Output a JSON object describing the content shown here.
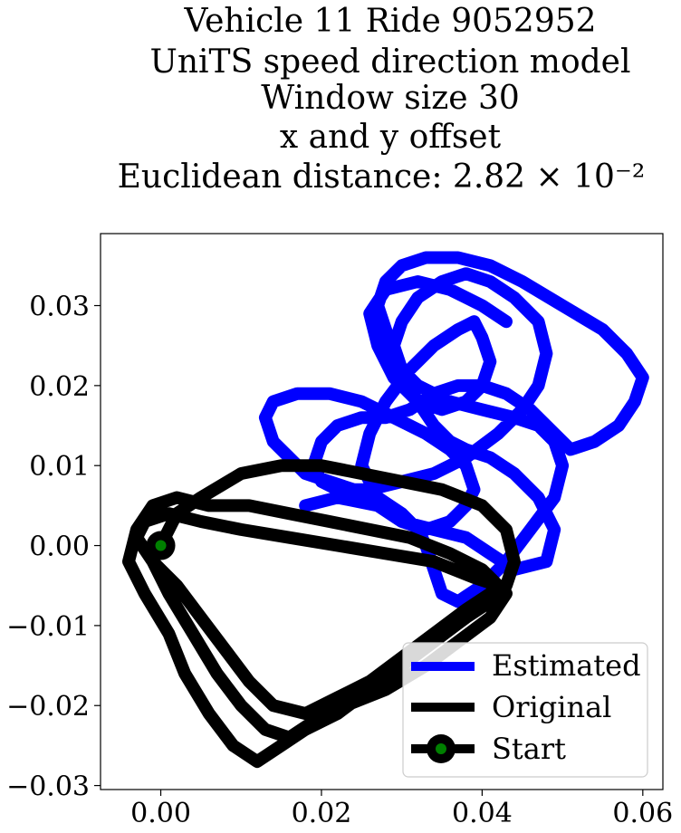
{
  "chart_data": {
    "type": "line",
    "title_lines": [
      "Vehicle 11 Ride 9052952",
      "UniTS speed direction model",
      "Window size 30",
      "x and y offset",
      "Euclidean distance: 2.82 × 10⁻²"
    ],
    "xlabel": "",
    "ylabel": "",
    "xlim": [
      -0.0075,
      0.0625
    ],
    "ylim": [
      -0.0305,
      0.039
    ],
    "x_ticks": [
      "0.00",
      "0.02",
      "0.04",
      "0.06"
    ],
    "x_tick_values": [
      0.0,
      0.02,
      0.04,
      0.06
    ],
    "y_ticks": [
      "0.03",
      "0.02",
      "0.01",
      "0.00",
      "−0.01",
      "−0.02",
      "−0.03"
    ],
    "y_tick_values": [
      0.03,
      0.02,
      0.01,
      0.0,
      -0.01,
      -0.02,
      -0.03
    ],
    "grid": false,
    "legend_position": "lower-right",
    "legend": [
      "Estimated",
      "Original",
      "Start"
    ],
    "series": [
      {
        "name": "Estimated",
        "color": "#0000ff",
        "x": [
          0.018,
          0.022,
          0.027,
          0.03,
          0.034,
          0.038,
          0.041,
          0.044,
          0.048,
          0.049,
          0.047,
          0.044,
          0.041,
          0.038,
          0.036,
          0.034,
          0.032,
          0.03,
          0.029,
          0.028,
          0.027,
          0.028,
          0.03,
          0.033,
          0.037,
          0.041,
          0.045,
          0.05,
          0.055,
          0.058,
          0.06,
          0.059,
          0.057,
          0.054,
          0.051,
          0.049,
          0.046,
          0.043,
          0.04,
          0.037,
          0.034,
          0.031,
          0.028,
          0.025,
          0.022,
          0.02,
          0.019,
          0.02,
          0.022,
          0.026,
          0.03,
          0.034,
          0.038,
          0.042,
          0.045,
          0.047,
          0.048,
          0.047,
          0.044,
          0.041,
          0.038,
          0.035,
          0.032,
          0.03,
          0.029,
          0.03,
          0.032,
          0.036,
          0.04,
          0.044,
          0.047,
          0.049,
          0.05,
          0.049,
          0.046,
          0.043,
          0.04,
          0.037,
          0.035,
          0.034,
          0.033,
          0.032,
          0.03,
          0.027,
          0.024,
          0.021,
          0.018,
          0.016,
          0.014,
          0.013,
          0.014,
          0.017,
          0.021,
          0.025,
          0.029,
          0.033,
          0.036,
          0.038,
          0.039,
          0.038,
          0.036,
          0.033,
          0.03,
          0.027,
          0.025,
          0.026,
          0.028,
          0.031,
          0.034,
          0.037,
          0.039,
          0.04,
          0.041,
          0.04,
          0.038,
          0.035,
          0.032,
          0.029,
          0.027,
          0.026,
          0.028,
          0.032,
          0.036,
          0.04,
          0.043
        ],
        "y": [
          0.005,
          0.006,
          0.005,
          0.003,
          0.002,
          0.001,
          -0.001,
          -0.003,
          -0.002,
          0.002,
          0.006,
          0.009,
          0.011,
          0.012,
          0.013,
          0.015,
          0.018,
          0.021,
          0.024,
          0.027,
          0.03,
          0.033,
          0.035,
          0.036,
          0.036,
          0.035,
          0.033,
          0.03,
          0.027,
          0.024,
          0.021,
          0.018,
          0.015,
          0.013,
          0.012,
          0.014,
          0.017,
          0.019,
          0.02,
          0.02,
          0.019,
          0.017,
          0.016,
          0.016,
          0.015,
          0.013,
          0.01,
          0.008,
          0.007,
          0.007,
          0.008,
          0.009,
          0.011,
          0.014,
          0.017,
          0.02,
          0.024,
          0.028,
          0.031,
          0.033,
          0.034,
          0.033,
          0.031,
          0.028,
          0.025,
          0.022,
          0.02,
          0.018,
          0.017,
          0.016,
          0.015,
          0.013,
          0.01,
          0.006,
          0.002,
          -0.002,
          -0.005,
          -0.007,
          -0.006,
          -0.003,
          0.0,
          0.002,
          0.004,
          0.006,
          0.007,
          0.008,
          0.009,
          0.011,
          0.013,
          0.016,
          0.018,
          0.019,
          0.019,
          0.018,
          0.016,
          0.014,
          0.012,
          0.01,
          0.007,
          0.005,
          0.003,
          0.002,
          0.003,
          0.006,
          0.01,
          0.014,
          0.018,
          0.022,
          0.025,
          0.027,
          0.028,
          0.026,
          0.023,
          0.02,
          0.018,
          0.017,
          0.018,
          0.021,
          0.025,
          0.029,
          0.032,
          0.033,
          0.032,
          0.03,
          0.028
        ]
      },
      {
        "name": "Original",
        "color": "#000000",
        "x": [
          0.0,
          0.002,
          0.005,
          0.01,
          0.015,
          0.02,
          0.025,
          0.03,
          0.035,
          0.04,
          0.043,
          0.044,
          0.043,
          0.041,
          0.038,
          0.034,
          0.03,
          0.026,
          0.022,
          0.018,
          0.015,
          0.012,
          0.009,
          0.006,
          0.003,
          0.001,
          -0.002,
          -0.004,
          -0.003,
          -0.001,
          0.002,
          0.006,
          0.011,
          0.016,
          0.021,
          0.026,
          0.031,
          0.036,
          0.04,
          0.042,
          0.041,
          0.038,
          0.034,
          0.03,
          0.026,
          0.022,
          0.018,
          0.014,
          0.011,
          0.008,
          0.005,
          0.002,
          -0.001,
          -0.003,
          -0.002,
          0.001,
          0.005,
          0.01,
          0.016,
          0.022,
          0.028,
          0.034,
          0.039,
          0.042,
          0.043,
          0.041,
          0.037,
          0.033,
          0.028,
          0.023,
          0.019,
          0.016,
          0.013,
          0.01,
          0.007,
          0.004,
          0.001,
          -0.001,
          0.0
        ],
        "y": [
          0.0,
          0.004,
          0.006,
          0.009,
          0.01,
          0.01,
          0.009,
          0.008,
          0.007,
          0.005,
          0.002,
          -0.002,
          -0.005,
          -0.007,
          -0.009,
          -0.012,
          -0.015,
          -0.018,
          -0.021,
          -0.023,
          -0.025,
          -0.027,
          -0.025,
          -0.021,
          -0.016,
          -0.011,
          -0.006,
          -0.002,
          0.002,
          0.005,
          0.006,
          0.005,
          0.005,
          0.004,
          0.003,
          0.002,
          0.001,
          -0.001,
          -0.003,
          -0.005,
          -0.006,
          -0.008,
          -0.011,
          -0.014,
          -0.017,
          -0.019,
          -0.021,
          -0.02,
          -0.017,
          -0.013,
          -0.009,
          -0.005,
          -0.002,
          0.001,
          0.003,
          0.004,
          0.003,
          0.002,
          0.001,
          0.0,
          -0.001,
          -0.002,
          -0.004,
          -0.005,
          -0.006,
          -0.009,
          -0.012,
          -0.015,
          -0.018,
          -0.02,
          -0.022,
          -0.024,
          -0.023,
          -0.02,
          -0.016,
          -0.011,
          -0.006,
          -0.002,
          0.0
        ]
      }
    ],
    "start_point": {
      "name": "Start",
      "x": 0.0,
      "y": 0.0,
      "marker_color": "#008000",
      "edge_color": "#000000"
    }
  }
}
